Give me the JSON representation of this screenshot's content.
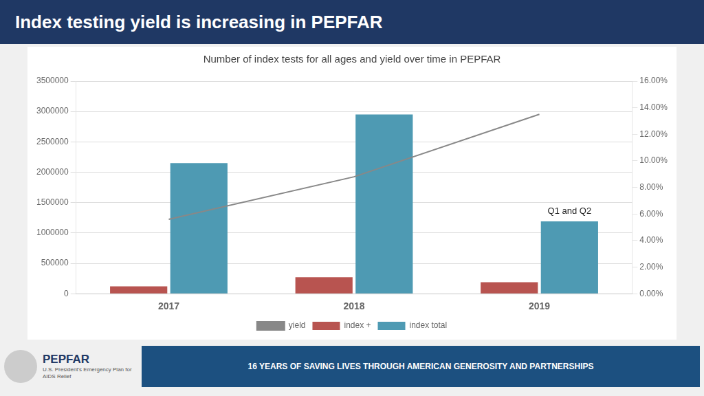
{
  "chart_data": {
    "type": "bar",
    "title": "Index testing yield is increasing in PEPFAR",
    "subtitle": "Number of index tests for all ages and yield over time in PEPFAR",
    "categories": [
      "2017",
      "2018",
      "2019"
    ],
    "series": [
      {
        "name": "index +",
        "color": "#b85450",
        "values": [
          120000,
          270000,
          190000
        ]
      },
      {
        "name": "index total",
        "color": "#4e9ab3",
        "values": [
          2150000,
          2950000,
          1190000
        ]
      },
      {
        "name": "yield",
        "type": "line",
        "color": "#888888",
        "axis": "y2",
        "values": [
          0.056,
          0.088,
          0.135
        ]
      }
    ],
    "ylim": [
      0,
      3500000
    ],
    "yticks": [
      0,
      500000,
      1000000,
      1500000,
      2000000,
      2500000,
      3000000,
      3500000
    ],
    "y2lim": [
      0,
      0.16
    ],
    "y2ticks": [
      {
        "value": 0.0,
        "label": "0.00%"
      },
      {
        "value": 0.02,
        "label": "2.00%"
      },
      {
        "value": 0.04,
        "label": "4.00%"
      },
      {
        "value": 0.06,
        "label": "6.00%"
      },
      {
        "value": 0.08,
        "label": "8.00%"
      },
      {
        "value": 0.1,
        "label": "10.00%"
      },
      {
        "value": 0.12,
        "label": "12.00%"
      },
      {
        "value": 0.14,
        "label": "14.00%"
      },
      {
        "value": 0.16,
        "label": "16.00%"
      }
    ],
    "grid": true,
    "legend": "bottom",
    "annotations": [
      "Q1 and Q2",
      "PEPFAR",
      "U.S. President's Emergency Plan for AIDS Relief",
      "16 YEARS OF SAVING LIVES THROUGH AMERICAN GENEROSITY AND PARTNERSHIPS"
    ]
  }
}
